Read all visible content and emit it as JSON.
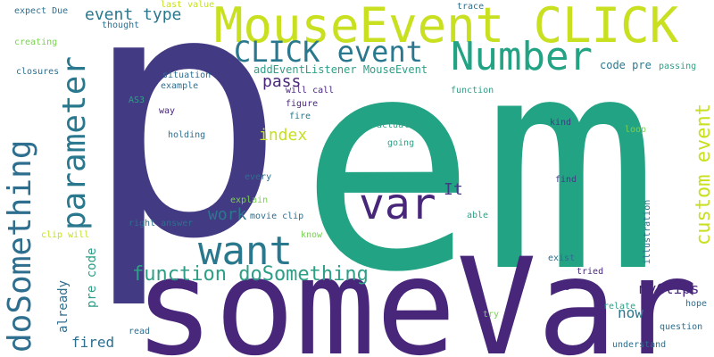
{
  "words": [
    {
      "text": "p",
      "color": "#433a84"
    },
    {
      "text": "e",
      "color": "#22a384"
    },
    {
      "text": "m",
      "color": "#22a384"
    },
    {
      "text": "someVar",
      "color": "#48267a"
    },
    {
      "text": "MouseEvent CLICK",
      "color": "#c8e020"
    },
    {
      "text": "CLICK event",
      "color": "#2a788e"
    },
    {
      "text": "Number",
      "color": "#22a384"
    },
    {
      "text": "parameter",
      "color": "#2a788e"
    },
    {
      "text": "doSomething",
      "color": "#2e6e8e"
    },
    {
      "text": "want",
      "color": "#2a788e"
    },
    {
      "text": "var",
      "color": "#48267a"
    },
    {
      "text": "function doSomething",
      "color": "#2e9f86"
    },
    {
      "text": "custom event",
      "color": "#c8e020"
    },
    {
      "text": "event type",
      "color": "#2a788e"
    },
    {
      "text": "pass",
      "color": "#48267a"
    },
    {
      "text": "index",
      "color": "#c8e020"
    },
    {
      "text": "work",
      "color": "#2a788e"
    },
    {
      "text": "It",
      "color": "#433a84"
    },
    {
      "text": "pre code",
      "color": "#2e9f86"
    },
    {
      "text": "already",
      "color": "#2e6e8e"
    },
    {
      "text": "fired",
      "color": "#2e6e8e"
    },
    {
      "text": "now",
      "color": "#2a788e"
    },
    {
      "text": "myClips",
      "color": "#48267a"
    },
    {
      "text": "code pre",
      "color": "#2a788e"
    },
    {
      "text": "addEventListener MouseEvent",
      "color": "#2e9f86"
    },
    {
      "text": "will call",
      "color": "#48267a"
    },
    {
      "text": "figure",
      "color": "#48267a"
    },
    {
      "text": "fire",
      "color": "#2a788e"
    },
    {
      "text": "function",
      "color": "#2e9f86"
    },
    {
      "text": "passing",
      "color": "#2e9f86"
    },
    {
      "text": "trace",
      "color": "#2e6e8e"
    },
    {
      "text": "last value",
      "color": "#c8e020"
    },
    {
      "text": "expect Due",
      "color": "#2e6e8e"
    },
    {
      "text": "thought",
      "color": "#2e6e8e"
    },
    {
      "text": "creating",
      "color": "#7ad151"
    },
    {
      "text": "closures",
      "color": "#2e6e8e"
    },
    {
      "text": "lot",
      "color": "#433a84"
    },
    {
      "text": "situation",
      "color": "#2e6e8e"
    },
    {
      "text": "example",
      "color": "#2e6e8e"
    },
    {
      "text": "AS3",
      "color": "#2e9f86"
    },
    {
      "text": "way",
      "color": "#48267a"
    },
    {
      "text": "holding",
      "color": "#2e6e8e"
    },
    {
      "text": "actually",
      "color": "#2e9f86"
    },
    {
      "text": "going",
      "color": "#2e9f86"
    },
    {
      "text": "kind",
      "color": "#433a84"
    },
    {
      "text": "loop",
      "color": "#7ad151"
    },
    {
      "text": "every",
      "color": "#2e6e8e"
    },
    {
      "text": "find",
      "color": "#433a84"
    },
    {
      "text": "explain",
      "color": "#7ad151"
    },
    {
      "text": "movie clip",
      "color": "#2e6e8e"
    },
    {
      "text": "right answer",
      "color": "#2e6e8e"
    },
    {
      "text": "clip will",
      "color": "#c8e020"
    },
    {
      "text": "know",
      "color": "#7ad151"
    },
    {
      "text": "able",
      "color": "#2e9f86"
    },
    {
      "text": "illustration",
      "color": "#2e6e8e"
    },
    {
      "text": "exist",
      "color": "#2e6e8e"
    },
    {
      "text": "tried",
      "color": "#48267a"
    },
    {
      "text": "e",
      "color": "#48267a"
    },
    {
      "text": "relate",
      "color": "#2e9f86"
    },
    {
      "text": "hope",
      "color": "#2e6e8e"
    },
    {
      "text": "try",
      "color": "#7ad151"
    },
    {
      "text": "question",
      "color": "#2e6e8e"
    },
    {
      "text": "read",
      "color": "#2e6e8e"
    },
    {
      "text": "understand",
      "color": "#2e6e8e"
    }
  ]
}
